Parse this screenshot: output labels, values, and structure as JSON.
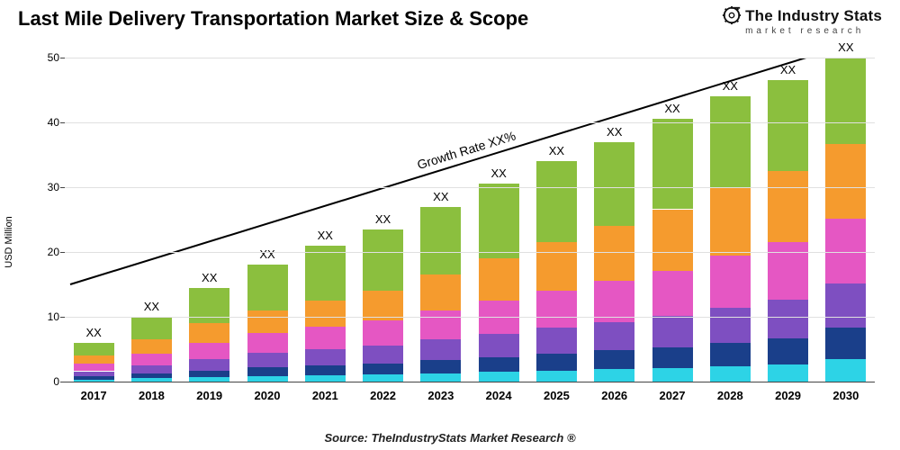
{
  "title": "Last Mile Delivery Transportation Market Size & Scope",
  "logo": {
    "brand": "The Industry Stats",
    "sub": "market research"
  },
  "footer": "Source: TheIndustryStats Market Research ®",
  "chart": {
    "type": "stacked-bar",
    "ylabel": "USD Million",
    "ylim": [
      0,
      50
    ],
    "ytick_step": 10,
    "background_color": "#ffffff",
    "grid_color": "#e0e0e0",
    "axis_color": "#444444",
    "bar_width_ratio": 0.7,
    "label_fontsize": 13,
    "title_fontsize": 22,
    "categories": [
      "2017",
      "2018",
      "2019",
      "2020",
      "2021",
      "2022",
      "2023",
      "2024",
      "2025",
      "2026",
      "2027",
      "2028",
      "2029",
      "2030"
    ],
    "value_labels": [
      "XX",
      "XX",
      "XX",
      "XX",
      "XX",
      "XX",
      "XX",
      "XX",
      "XX",
      "XX",
      "XX",
      "XX",
      "XX",
      "XX"
    ],
    "segment_colors": [
      "#2dd3e6",
      "#1a3f8a",
      "#7e4fc1",
      "#e557c3",
      "#f59b2e",
      "#8bbf3e"
    ],
    "stacks": [
      [
        0.3,
        0.5,
        0.8,
        1.2,
        1.2,
        2.0
      ],
      [
        0.5,
        0.8,
        1.2,
        1.8,
        2.2,
        3.5
      ],
      [
        0.7,
        1.0,
        1.8,
        2.5,
        3.0,
        5.5
      ],
      [
        0.9,
        1.3,
        2.2,
        3.1,
        3.5,
        7.0
      ],
      [
        1.0,
        1.5,
        2.5,
        3.5,
        4.0,
        8.5
      ],
      [
        1.1,
        1.7,
        2.8,
        3.9,
        4.5,
        9.5
      ],
      [
        1.3,
        2.0,
        3.2,
        4.5,
        5.5,
        10.5
      ],
      [
        1.5,
        2.3,
        3.6,
        5.1,
        6.5,
        11.5
      ],
      [
        1.7,
        2.6,
        4.0,
        5.7,
        7.5,
        12.5
      ],
      [
        1.9,
        2.9,
        4.4,
        6.3,
        8.5,
        13.0
      ],
      [
        2.1,
        3.2,
        4.8,
        7.0,
        9.5,
        14.0
      ],
      [
        2.4,
        3.6,
        5.4,
        8.0,
        10.5,
        14.1
      ],
      [
        2.7,
        4.0,
        6.0,
        8.8,
        11.0,
        14.0
      ],
      [
        3.5,
        4.8,
        6.8,
        10.0,
        11.5,
        13.4
      ]
    ],
    "growth_arrow": {
      "label": "Growth Rate XX%",
      "color": "#000000",
      "line_width": 2,
      "start_value": 15,
      "end_value": 53
    }
  }
}
